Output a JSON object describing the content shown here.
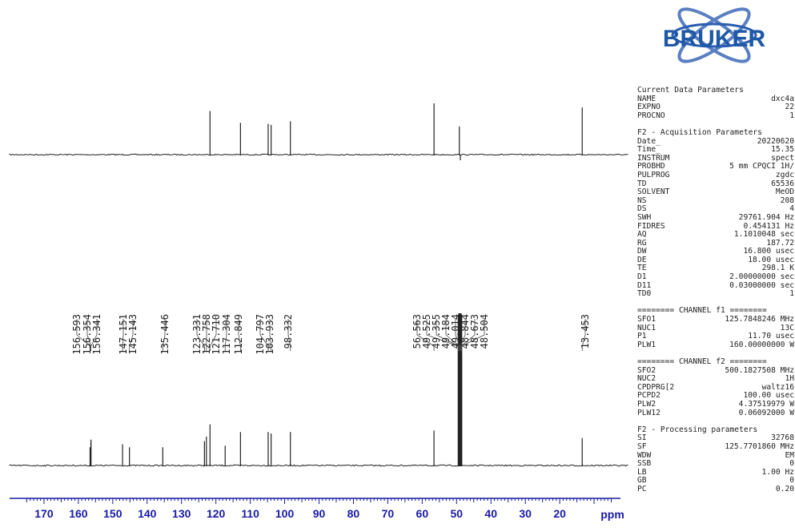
{
  "logo": {
    "text": "BRUKER",
    "color": "#1e58a6"
  },
  "params": {
    "sections": [
      {
        "title": "Current Data Parameters",
        "rows": [
          [
            "NAME",
            "dxc4a",
            ""
          ],
          [
            "EXPNO",
            "22",
            ""
          ],
          [
            "PROCNO",
            "1",
            ""
          ]
        ]
      },
      {
        "title": "F2 - Acquisition Parameters",
        "rows": [
          [
            "Date_",
            "20220620",
            ""
          ],
          [
            "Time_",
            "15.35",
            ""
          ],
          [
            "INSTRUM",
            "spect",
            ""
          ],
          [
            "PROBHD",
            "5 mm CPQCI 1H/",
            ""
          ],
          [
            "PULPROG",
            "zgdc",
            ""
          ],
          [
            "TD",
            "65536",
            ""
          ],
          [
            "SOLVENT",
            "MeOD",
            ""
          ],
          [
            "NS",
            "208",
            ""
          ],
          [
            "DS",
            "4",
            ""
          ],
          [
            "SWH",
            "29761.904",
            "Hz"
          ],
          [
            "FIDRES",
            "0.454131",
            "Hz"
          ],
          [
            "AQ",
            "1.1010048",
            "sec"
          ],
          [
            "RG",
            "187.72",
            ""
          ],
          [
            "DW",
            "16.800",
            "usec"
          ],
          [
            "DE",
            "18.00",
            "usec"
          ],
          [
            "TE",
            "298.1",
            "K"
          ],
          [
            "D1",
            "2.00000000",
            "sec"
          ],
          [
            "D11",
            "0.03000000",
            "sec"
          ],
          [
            "TD0",
            "1",
            ""
          ]
        ]
      },
      {
        "title": "======== CHANNEL f1 ========",
        "rows": [
          [
            "SFO1",
            "125.7848246",
            "MHz"
          ],
          [
            "NUC1",
            "13C",
            ""
          ],
          [
            "P1",
            "11.70",
            "usec"
          ],
          [
            "PLW1",
            "160.00000000",
            "W"
          ]
        ]
      },
      {
        "title": "======== CHANNEL f2 ========",
        "rows": [
          [
            "SFO2",
            "500.1827508",
            "MHz"
          ],
          [
            "NUC2",
            "1H",
            ""
          ],
          [
            "CPDPRG[2",
            "waltz16",
            ""
          ],
          [
            "PCPD2",
            "100.00",
            "usec"
          ],
          [
            "PLW2",
            "4.37519979",
            "W"
          ],
          [
            "PLW12",
            "0.06092000",
            "W"
          ]
        ]
      },
      {
        "title": "F2 - Processing parameters",
        "rows": [
          [
            "SI",
            "32768",
            ""
          ],
          [
            "SF",
            "125.7701860",
            "MHz"
          ],
          [
            "WDW",
            "EM",
            ""
          ],
          [
            "SSB",
            "0",
            ""
          ],
          [
            "LB",
            "1.00",
            "Hz"
          ],
          [
            "GB",
            "0",
            ""
          ],
          [
            "PC",
            "0.20",
            ""
          ]
        ]
      }
    ]
  },
  "chart_data": {
    "type": "line",
    "title": "",
    "xlabel": "ppm",
    "ylabel": "",
    "xlim": [
      180,
      0
    ],
    "x_axis_reversed": true,
    "ticks": [
      170,
      160,
      150,
      140,
      130,
      120,
      110,
      100,
      90,
      80,
      70,
      60,
      50,
      40,
      30,
      20
    ],
    "colors": {
      "axis": "#1a1aa6",
      "trace": "#222222"
    },
    "peak_labels": [
      "156.593",
      "156.354",
      "156.341",
      "147.151",
      "145.143",
      "135.446",
      "123.331",
      "122.758",
      "121.710",
      "117.304",
      "112.849",
      "104.797",
      "103.933",
      "98.332",
      "56.563",
      "49.525",
      "49.355",
      "49.184",
      "49.014",
      "48.844",
      "48.673",
      "48.504",
      "13.453"
    ],
    "series": [
      {
        "spectrum": "dept",
        "peaks": [
          [
            121.71,
            0.85
          ],
          [
            112.85,
            0.62
          ],
          [
            104.8,
            0.6
          ],
          [
            103.93,
            0.58
          ],
          [
            98.33,
            0.65
          ],
          [
            56.56,
            1.0
          ],
          [
            49.2,
            0.55
          ],
          [
            13.45,
            0.92
          ]
        ]
      },
      {
        "spectrum": "13C",
        "peaks": [
          [
            156.593,
            0.12
          ],
          [
            156.354,
            0.16
          ],
          [
            156.341,
            0.17
          ],
          [
            147.151,
            0.14
          ],
          [
            145.143,
            0.12
          ],
          [
            135.446,
            0.12
          ],
          [
            123.331,
            0.16
          ],
          [
            122.758,
            0.19
          ],
          [
            121.71,
            0.27
          ],
          [
            117.304,
            0.13
          ],
          [
            112.849,
            0.22
          ],
          [
            104.797,
            0.22
          ],
          [
            103.933,
            0.21
          ],
          [
            98.332,
            0.22
          ],
          [
            56.563,
            0.23
          ],
          [
            49.525,
            0.99
          ],
          [
            49.355,
            1.0
          ],
          [
            49.184,
            1.0
          ],
          [
            49.014,
            1.0
          ],
          [
            48.844,
            1.0
          ],
          [
            48.673,
            1.0
          ],
          [
            48.504,
            0.99
          ],
          [
            13.453,
            0.18
          ]
        ]
      }
    ]
  }
}
